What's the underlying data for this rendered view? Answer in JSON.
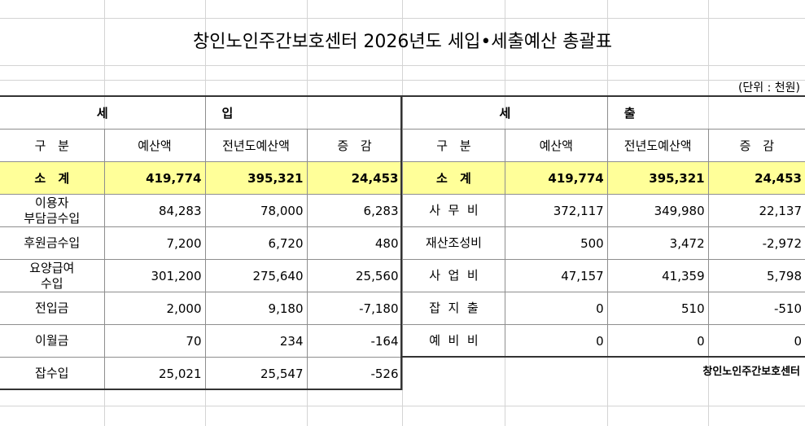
{
  "title": "창인노인주간보호센터 2026년도 세입•세출예산 총괄표",
  "unit": "(단위 : 천원)",
  "income": {
    "header_left": "세",
    "header_right": "입",
    "columns": [
      "구      분",
      "예산액",
      "전년도예산액",
      "증      감"
    ],
    "subtotal": {
      "label": "소      계",
      "budget": "419,774",
      "prev": "395,321",
      "diff": "24,453"
    },
    "rows": [
      {
        "category": "이용자\n부담금수입",
        "budget": "84,283",
        "prev": "78,000",
        "diff": "6,283"
      },
      {
        "category": "후원금수입",
        "budget": "7,200",
        "prev": "6,720",
        "diff": "480"
      },
      {
        "category": "요양급여\n수입",
        "budget": "301,200",
        "prev": "275,640",
        "diff": "25,560"
      },
      {
        "category": "전입금",
        "budget": "2,000",
        "prev": "9,180",
        "diff": "-7,180"
      },
      {
        "category": "이월금",
        "budget": "70",
        "prev": "234",
        "diff": "-164"
      },
      {
        "category": "잡수입",
        "budget": "25,021",
        "prev": "25,547",
        "diff": "-526"
      }
    ]
  },
  "expense": {
    "header_left": "세",
    "header_right": "출",
    "columns": [
      "구      분",
      "예산액",
      "전년도예산액",
      "증      감"
    ],
    "subtotal": {
      "label": "소      계",
      "budget": "419,774",
      "prev": "395,321",
      "diff": "24,453"
    },
    "rows": [
      {
        "category": "사  무  비",
        "budget": "372,117",
        "prev": "349,980",
        "diff": "22,137"
      },
      {
        "category": "재산조성비",
        "budget": "500",
        "prev": "3,472",
        "diff": "-2,972"
      },
      {
        "category": "사  업  비",
        "budget": "47,157",
        "prev": "41,359",
        "diff": "5,798"
      },
      {
        "category": "잡  지  출",
        "budget": "0",
        "prev": "510",
        "diff": "-510"
      },
      {
        "category": "예  비  비",
        "budget": "0",
        "prev": "0",
        "diff": "0"
      }
    ]
  },
  "organization": "창인노인주간보호센터"
}
